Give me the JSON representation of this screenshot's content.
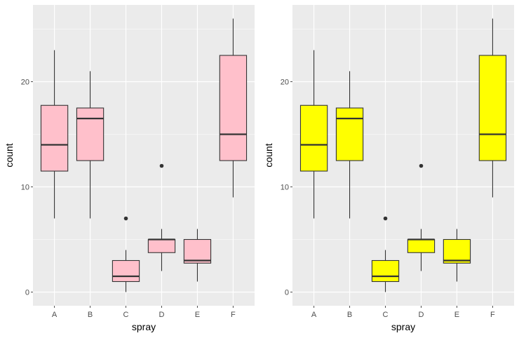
{
  "chart_data": [
    {
      "type": "box",
      "panel": "left",
      "xlabel": "spray",
      "ylabel": "count",
      "categories": [
        "A",
        "B",
        "C",
        "D",
        "E",
        "F"
      ],
      "yticks": [
        0,
        10,
        20
      ],
      "ylim": [
        -1.3,
        27.3
      ],
      "fill": "#FFC0CB",
      "grid": true,
      "boxes": [
        {
          "category": "A",
          "lower_whisker": 7,
          "q1": 11.5,
          "median": 14,
          "q3": 17.75,
          "upper_whisker": 23,
          "outliers": []
        },
        {
          "category": "B",
          "lower_whisker": 7,
          "q1": 12.5,
          "median": 16.5,
          "q3": 17.5,
          "upper_whisker": 21,
          "outliers": []
        },
        {
          "category": "C",
          "lower_whisker": 0,
          "q1": 1,
          "median": 1.5,
          "q3": 3,
          "upper_whisker": 4,
          "outliers": [
            7
          ]
        },
        {
          "category": "D",
          "lower_whisker": 2,
          "q1": 3.75,
          "median": 5,
          "q3": 5,
          "upper_whisker": 6,
          "outliers": [
            12
          ]
        },
        {
          "category": "E",
          "lower_whisker": 1,
          "q1": 2.75,
          "median": 3,
          "q3": 5,
          "upper_whisker": 6,
          "outliers": []
        },
        {
          "category": "F",
          "lower_whisker": 9,
          "q1": 12.5,
          "median": 15,
          "q3": 22.5,
          "upper_whisker": 26,
          "outliers": []
        }
      ]
    },
    {
      "type": "box",
      "panel": "right",
      "xlabel": "spray",
      "ylabel": "count",
      "categories": [
        "A",
        "B",
        "C",
        "D",
        "E",
        "F"
      ],
      "yticks": [
        0,
        10,
        20
      ],
      "ylim": [
        -1.3,
        27.3
      ],
      "fill": "#FFFF00",
      "grid": true,
      "boxes": [
        {
          "category": "A",
          "lower_whisker": 7,
          "q1": 11.5,
          "median": 14,
          "q3": 17.75,
          "upper_whisker": 23,
          "outliers": []
        },
        {
          "category": "B",
          "lower_whisker": 7,
          "q1": 12.5,
          "median": 16.5,
          "q3": 17.5,
          "upper_whisker": 21,
          "outliers": []
        },
        {
          "category": "C",
          "lower_whisker": 0,
          "q1": 1,
          "median": 1.5,
          "q3": 3,
          "upper_whisker": 4,
          "outliers": [
            7
          ]
        },
        {
          "category": "D",
          "lower_whisker": 2,
          "q1": 3.75,
          "median": 5,
          "q3": 5,
          "upper_whisker": 6,
          "outliers": [
            12
          ]
        },
        {
          "category": "E",
          "lower_whisker": 1,
          "q1": 2.75,
          "median": 3,
          "q3": 5,
          "upper_whisker": 6,
          "outliers": []
        },
        {
          "category": "F",
          "lower_whisker": 9,
          "q1": 12.5,
          "median": 15,
          "q3": 22.5,
          "upper_whisker": 26,
          "outliers": []
        }
      ]
    }
  ],
  "colors": {
    "panel_background": "#EBEBEB",
    "grid": "#FFFFFF",
    "box_outline": "#333333",
    "axis_text": "#4D4D4D"
  }
}
